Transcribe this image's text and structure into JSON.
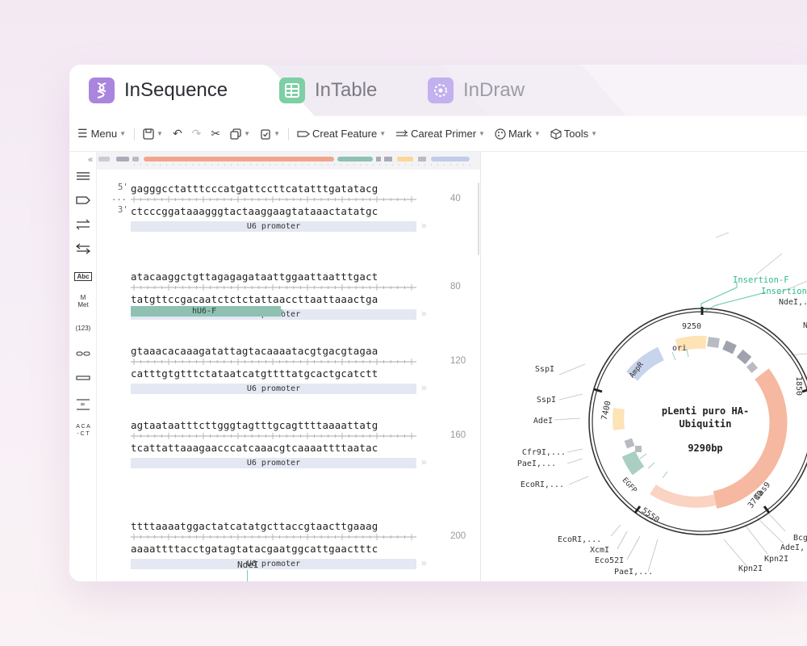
{
  "tabs": [
    {
      "label": "InSequence",
      "icon": "dna-icon"
    },
    {
      "label": "InTable",
      "icon": "table-icon"
    },
    {
      "label": "InDraw",
      "icon": "draw-icon"
    }
  ],
  "toolbar": {
    "menu": "Menu",
    "create_feature": "Creat Feature",
    "create_primer": "Careat Primer",
    "mark": "Mark",
    "tools": "Tools"
  },
  "sidebar": {
    "abc": "Abc",
    "met_top": "M",
    "met_bottom": "Met",
    "num": "(123)",
    "aca": "A C A",
    "ct": "- C T"
  },
  "sequence": {
    "label5": "5'",
    "label3": "3'",
    "dots": "...",
    "rows": [
      {
        "top": "gagggcctatttcccatgattccttcatatttgatatacg",
        "bottom": "ctcccggataaagggtactaaggaagtataaactatatgc",
        "pos": "40",
        "feature": "U6 promoter"
      },
      {
        "top": "atacaaggctgttagagagataattggaattaatttgact",
        "bottom": "tatgttccgacaatctctctattaaccttaattaaactga",
        "pos": "80",
        "feature": "U6 promoter"
      },
      {
        "top": "gtaaacacaaagatattagtacaaaatacgtgacgtagaa",
        "bottom": "catttgtgtttctataatcatgttttatgcactgcatctt",
        "pos": "120",
        "feature": "U6 promoter"
      },
      {
        "top": "agtaataatttcttgggtagtttgcagttttaaaattatg",
        "bottom": "tcattattaaagaacccatcaaacgtcaaaattttaatac",
        "pos": "160",
        "feature": "U6 promoter"
      },
      {
        "top": "ttttaaaatggactatcatatgcttaccgtaacttgaaag",
        "bottom": "aaaattttacctgatagtatacgaatggcattgaactttc",
        "pos": "200",
        "feature": "U6 promoter"
      }
    ],
    "primer": "hU6-F",
    "site_label": "NdeI"
  },
  "plasmid": {
    "name_line1": "pLenti puro HA-",
    "name_line2": "Ubiquitin",
    "size": "9290bp",
    "ticks": [
      "9250",
      "1850",
      "3700",
      "5550",
      "7400"
    ],
    "features": [
      "ori",
      "AmpR",
      "Cas9",
      "EGFP"
    ],
    "primers": [
      "Insertion-F",
      "Insertion-"
    ],
    "sites_left": [
      "SspI",
      "SspI",
      "AdeI",
      "Cfr9I,...",
      "PaeI,...",
      "EcoRI,..."
    ],
    "sites_bottom": [
      "EcoRI,...",
      "XcmI",
      "Eco52I",
      "PaeI,...",
      "Kpn2I",
      "Kpn2I",
      "AdeI,",
      "Bcg"
    ],
    "sites_top": [
      "NdeI,..",
      "N"
    ]
  },
  "colors": {
    "cas9": "#f6b8a0",
    "ampr": "#c8d3ec",
    "ori": "#fde3b5",
    "egfp": "#a9cfc3",
    "primer": "#52c4a4",
    "feature_bar": "#e3e8f2"
  }
}
